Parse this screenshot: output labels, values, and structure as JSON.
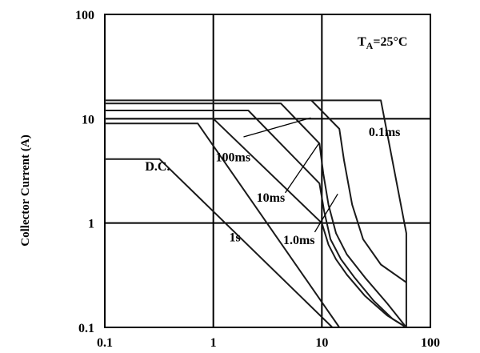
{
  "chart_data": {
    "type": "line",
    "title": "",
    "xlabel": "",
    "ylabel": "Collector Current (A)",
    "x_scale": "log",
    "y_scale": "log",
    "xlim": [
      0.1,
      100
    ],
    "ylim": [
      0.1,
      100
    ],
    "x_ticks": [
      "0.1",
      "1",
      "10",
      "100"
    ],
    "y_ticks": [
      "0.1",
      "1",
      "10",
      "100"
    ],
    "grid": "major",
    "condition_label": "TA=25°C",
    "condition_main": "T",
    "condition_sub": "A",
    "condition_rest": "=25°C",
    "series": [
      {
        "name": "D.C.",
        "points": [
          [
            0.1,
            4.1
          ],
          [
            0.32,
            4.1
          ],
          [
            12.5,
            0.1
          ]
        ]
      },
      {
        "name": "1s",
        "points": [
          [
            0.1,
            9.0
          ],
          [
            0.72,
            9.0
          ],
          [
            14.5,
            0.1
          ]
        ]
      },
      {
        "name": "100ms",
        "points": [
          [
            0.1,
            10.0
          ],
          [
            1.0,
            10.0
          ],
          [
            10.0,
            1.0
          ],
          [
            11.5,
            0.62
          ],
          [
            13.5,
            0.45
          ],
          [
            17.0,
            0.32
          ],
          [
            25.0,
            0.2
          ],
          [
            40.0,
            0.13
          ],
          [
            60.0,
            0.1
          ]
        ]
      },
      {
        "name": "10ms",
        "points": [
          [
            0.1,
            12.0
          ],
          [
            2.1,
            12.0
          ],
          [
            9.5,
            2.4
          ],
          [
            10.5,
            1.3
          ],
          [
            12.0,
            0.7
          ],
          [
            15.0,
            0.45
          ],
          [
            20.0,
            0.3
          ],
          [
            30.0,
            0.18
          ],
          [
            45.0,
            0.12
          ],
          [
            60.0,
            0.1
          ]
        ]
      },
      {
        "name": "1.0ms",
        "points": [
          [
            0.1,
            14.0
          ],
          [
            4.2,
            14.0
          ],
          [
            9.5,
            5.8
          ],
          [
            10.3,
            3.0
          ],
          [
            11.5,
            1.5
          ],
          [
            13.5,
            0.8
          ],
          [
            17.0,
            0.5
          ],
          [
            25.0,
            0.3
          ],
          [
            40.0,
            0.17
          ],
          [
            60.0,
            0.1
          ]
        ]
      },
      {
        "name": "0.1ms",
        "points": [
          [
            0.1,
            15.0
          ],
          [
            35.0,
            15.0
          ],
          [
            60.0,
            0.8
          ],
          [
            60.0,
            0.1
          ]
        ]
      },
      {
        "name": "",
        "points": [
          [
            8.0,
            15.0
          ],
          [
            14.5,
            8.0
          ],
          [
            16.0,
            4.0
          ],
          [
            19.0,
            1.5
          ],
          [
            24.0,
            0.7
          ],
          [
            35.0,
            0.4
          ],
          [
            60.0,
            0.27
          ]
        ]
      }
    ],
    "annotations": [
      {
        "text": "D.C.",
        "x": 0.235,
        "y": 3.2
      },
      {
        "text": "1s",
        "x": 1.4,
        "y": 0.67
      },
      {
        "text": "100ms",
        "x": 1.05,
        "y": 3.9
      },
      {
        "text": "10ms",
        "x": 2.5,
        "y": 1.6
      },
      {
        "text": "1.0ms",
        "x": 4.4,
        "y": 0.63
      },
      {
        "text": "0.1ms",
        "x": 27.0,
        "y": 6.8
      }
    ],
    "leaders": [
      {
        "from": [
          1.9,
          6.7
        ],
        "to": [
          7.9,
          10.2
        ]
      },
      {
        "from": [
          4.6,
          1.95
        ],
        "to": [
          9.4,
          5.8
        ]
      },
      {
        "from": [
          8.6,
          0.82
        ],
        "to": [
          14.0,
          1.9
        ]
      }
    ]
  }
}
